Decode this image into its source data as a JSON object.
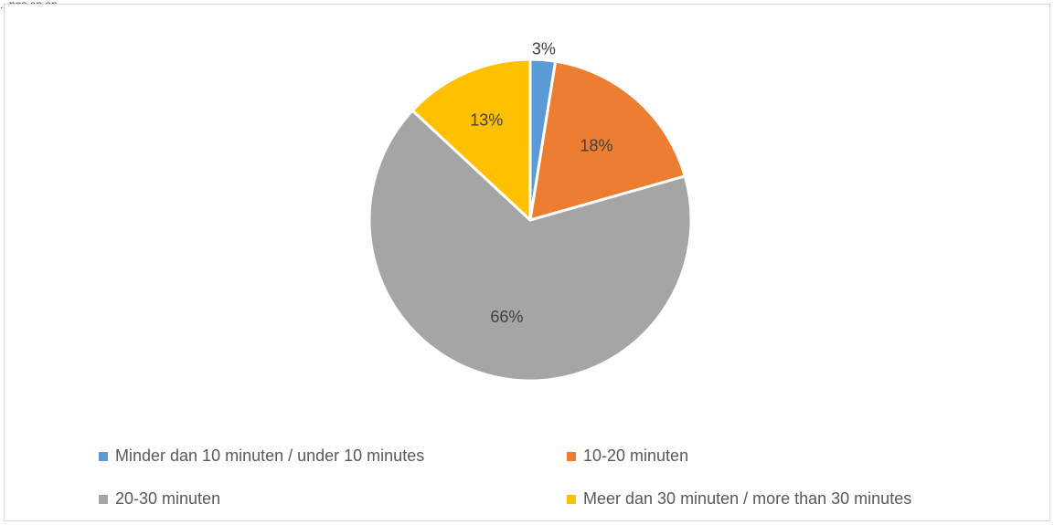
{
  "caption": "...ngs en op",
  "chart_data": {
    "type": "pie",
    "title": "",
    "categories": [
      "Minder dan 10 minuten / under 10 minutes",
      "10-20 minuten",
      "20-30 minuten",
      "Meer dan 30 minuten / more than 30 minutes"
    ],
    "values": [
      2.5,
      18,
      66,
      13
    ],
    "value_labels": [
      "3%",
      "18%",
      "66%",
      "13%"
    ],
    "colors": [
      "#5b9bd5",
      "#ed7d31",
      "#a5a5a5",
      "#ffc000"
    ],
    "legend_position": "bottom",
    "start_angle_deg": 0,
    "direction": "clockwise"
  }
}
